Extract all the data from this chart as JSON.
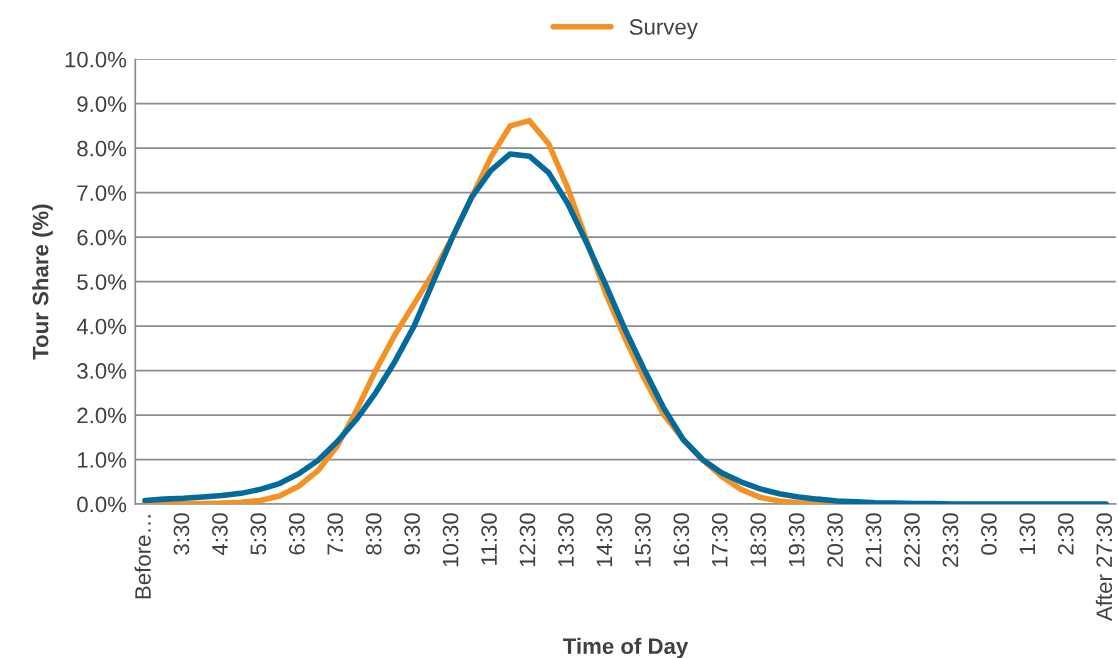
{
  "chart_data": {
    "type": "line",
    "xlabel": "Time of Day",
    "ylabel": "Tour Share (%)",
    "categories": [
      "Before…",
      null,
      "3:30",
      null,
      "4:30",
      null,
      "5:30",
      null,
      "6:30",
      null,
      "7:30",
      null,
      "8:30",
      null,
      "9:30",
      null,
      "10:30",
      null,
      "11:30",
      null,
      "12:30",
      null,
      "13:30",
      null,
      "14:30",
      null,
      "15:30",
      null,
      "16:30",
      null,
      "17:30",
      null,
      "18:30",
      null,
      "19:30",
      null,
      "20:30",
      null,
      "21:30",
      null,
      "22:30",
      null,
      "23:30",
      null,
      "0:30",
      null,
      "1:30",
      null,
      "2:30",
      null,
      "After 27:30"
    ],
    "series": [
      {
        "name": "Survey",
        "color": "#f39222",
        "values": [
          0.0,
          0.0,
          0.01,
          0.01,
          0.02,
          0.04,
          0.08,
          0.18,
          0.4,
          0.75,
          1.3,
          2.1,
          3.0,
          3.8,
          4.5,
          5.2,
          6.0,
          6.9,
          7.8,
          8.5,
          8.62,
          8.1,
          7.1,
          5.9,
          4.7,
          3.7,
          2.8,
          2.0,
          1.45,
          1.0,
          0.62,
          0.33,
          0.15,
          0.07,
          0.03,
          0.01,
          0.0,
          0.0,
          null,
          null,
          null,
          null,
          null,
          null,
          null,
          null,
          null,
          null,
          null,
          null,
          null
        ]
      },
      {
        "color": "#006b9c",
        "values": [
          0.08,
          0.11,
          0.13,
          0.16,
          0.19,
          0.24,
          0.33,
          0.46,
          0.68,
          0.98,
          1.4,
          1.9,
          2.5,
          3.2,
          4.0,
          5.0,
          6.0,
          6.9,
          7.5,
          7.87,
          7.82,
          7.45,
          6.75,
          5.85,
          4.9,
          3.9,
          3.0,
          2.15,
          1.45,
          1.0,
          0.7,
          0.5,
          0.34,
          0.23,
          0.16,
          0.11,
          0.07,
          0.05,
          0.03,
          0.02,
          0.01,
          0.01,
          0.0,
          0.0,
          0.0,
          0.0,
          0.0,
          0.0,
          0.0,
          0.0,
          0.0
        ]
      }
    ],
    "ylim": [
      0,
      10
    ],
    "yticks": [
      {
        "value": 0,
        "label": "0.0%"
      },
      {
        "value": 1,
        "label": "1.0%"
      },
      {
        "value": 2,
        "label": "2.0%"
      },
      {
        "value": 3,
        "label": "3.0%"
      },
      {
        "value": 4,
        "label": "4.0%"
      },
      {
        "value": 5,
        "label": "5.0%"
      },
      {
        "value": 6,
        "label": "6.0%"
      },
      {
        "value": 7,
        "label": "7.0%"
      },
      {
        "value": 8,
        "label": "8.0%"
      },
      {
        "value": 9,
        "label": "9.0%"
      },
      {
        "value": 10,
        "label": "10.0%"
      }
    ],
    "grid": "y",
    "legend": "top",
    "marker": "none",
    "line_style": "solid"
  }
}
